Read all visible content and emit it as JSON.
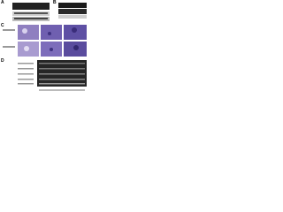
{
  "figure": {
    "panels": [
      {
        "label": "A"
      },
      {
        "label": "B"
      },
      {
        "label": "C"
      },
      {
        "label": "D"
      }
    ]
  }
}
